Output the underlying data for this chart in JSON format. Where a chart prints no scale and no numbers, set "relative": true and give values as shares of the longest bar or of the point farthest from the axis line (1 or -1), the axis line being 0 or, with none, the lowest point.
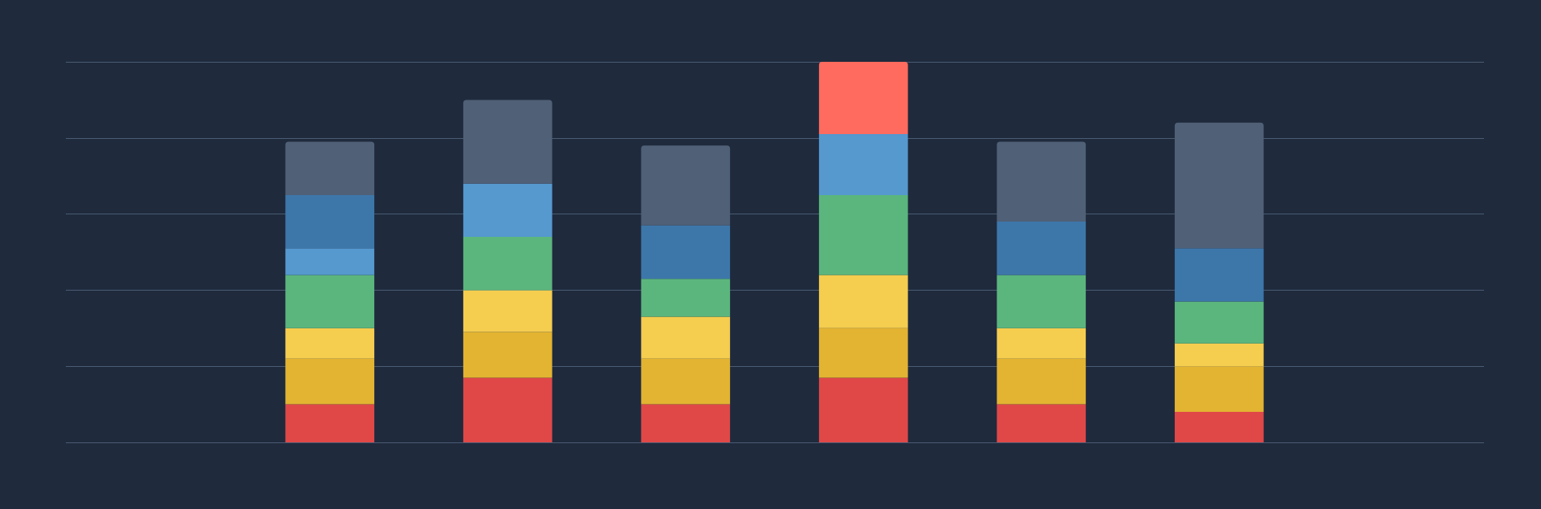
{
  "chart_data": {
    "type": "bar",
    "stacked": true,
    "relative": true,
    "grid": "y",
    "categories": [
      null,
      null,
      null,
      null,
      null,
      null
    ],
    "series": [
      {
        "color": "#e04848",
        "values": [
          0.1,
          0.17,
          0.1,
          0.17,
          0.1,
          0.08
        ]
      },
      {
        "color": "#e3b431",
        "values": [
          0.12,
          0.12,
          0.12,
          0.13,
          0.12,
          0.12
        ]
      },
      {
        "color": "#f5cd4f",
        "values": [
          0.08,
          0.11,
          0.11,
          0.14,
          0.08,
          0.06
        ]
      },
      {
        "color": "#5bb67d",
        "values": [
          0.14,
          0.14,
          0.1,
          0.21,
          0.14,
          0.11
        ]
      },
      {
        "color": "#5599cf",
        "values": [
          0.07,
          0.14,
          null,
          0.16,
          null,
          null
        ]
      },
      {
        "color": "#3d77aa",
        "values": [
          0.14,
          null,
          0.14,
          null,
          0.14,
          0.14
        ]
      },
      {
        "color": "#506077",
        "colors": [
          "#506077",
          "#506077",
          "#506077",
          "#ff6b5e",
          "#506077",
          "#506077"
        ],
        "values": [
          0.14,
          0.22,
          0.21,
          0.19,
          0.21,
          0.33
        ]
      }
    ]
  }
}
